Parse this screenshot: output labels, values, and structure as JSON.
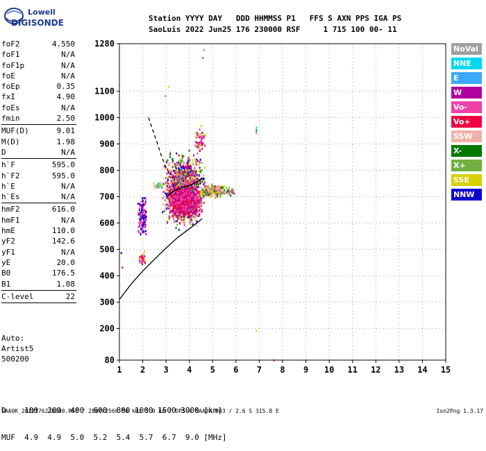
{
  "logo": {
    "line1": "Lowell",
    "line2": "DIGISONDE"
  },
  "header": {
    "line1": "Station YYYY DAY   DDD HHMMSS P1   FFS S AXN PPS IGA PS",
    "line2": "SaoLuis 2022 Jun25 176 230000 RSF     1 715 100 00- 11"
  },
  "params": [
    {
      "name": "foF2",
      "value": "4.550"
    },
    {
      "name": "foF1",
      "value": "N/A"
    },
    {
      "name": "foF1p",
      "value": "N/A"
    },
    {
      "name": "foE",
      "value": "N/A"
    },
    {
      "name": "foEp",
      "value": "0.35"
    },
    {
      "name": "fxI",
      "value": "4.90"
    },
    {
      "name": "foEs",
      "value": "N/A"
    },
    {
      "name": "fmin",
      "value": "2.50",
      "sep": true
    },
    {
      "name": "MUF(D)",
      "value": "9.01"
    },
    {
      "name": "M(D)",
      "value": "1.98"
    },
    {
      "name": "D",
      "value": "N/A",
      "sep": true
    },
    {
      "name": "h`F",
      "value": "595.0"
    },
    {
      "name": "h`F2",
      "value": "595.0"
    },
    {
      "name": "h`E",
      "value": "N/A"
    },
    {
      "name": "h`Es",
      "value": "N/A",
      "sep": true
    },
    {
      "name": "hmF2",
      "value": "616.0"
    },
    {
      "name": "hmF1",
      "value": "N/A"
    },
    {
      "name": "hmE",
      "value": "110.0"
    },
    {
      "name": "yF2",
      "value": "142.6"
    },
    {
      "name": "yF1",
      "value": "N/A"
    },
    {
      "name": "yE",
      "value": "20.0"
    },
    {
      "name": "B0",
      "value": "176.5"
    },
    {
      "name": "B1",
      "value": "1.08",
      "sep": true
    },
    {
      "name": "C-level",
      "value": "22",
      "sep": true
    }
  ],
  "auto": {
    "line1": "Auto:",
    "line2": "Artist5",
    "line3": "500200"
  },
  "legend": [
    {
      "label": "NoVal",
      "color": "#a0a0a0"
    },
    {
      "label": "NNE",
      "color": "#00d8f0"
    },
    {
      "label": "E",
      "color": "#3ca8f8"
    },
    {
      "label": "W",
      "color": "#b0009e"
    },
    {
      "label": "Vo-",
      "color": "#f040a8"
    },
    {
      "label": "Vo+",
      "color": "#f00040"
    },
    {
      "label": "SSW",
      "color": "#f0b0a8"
    },
    {
      "label": "X-",
      "color": "#007800"
    },
    {
      "label": "X+",
      "color": "#70b040"
    },
    {
      "label": "SSE",
      "color": "#d8d000"
    },
    {
      "label": "NNW",
      "color": "#1000d0"
    }
  ],
  "bottom": {
    "d_row": "D    100  200  400  600  800 1000 1500 3000 [km]",
    "muf_row": "MUF  4.9  4.9  5.0  5.2  5.4  5.7  6.7  9.0 [MHz]"
  },
  "footer": {
    "left": "SAA0K_2022176230000.RSF / 280fx256h 50 kHz 5.0 km / DPS-4 SAA0K 903 / 2.6 S 315.8 E",
    "right": "Ion2Png 1.3.17"
  },
  "chart_data": {
    "type": "scatter",
    "xlim": [
      1,
      15
    ],
    "ylim": [
      80,
      1280
    ],
    "x_ticks": [
      1,
      2,
      3,
      4,
      5,
      6,
      7,
      8,
      9,
      10,
      11,
      12,
      13,
      14,
      15
    ],
    "y_ticks": [
      80,
      200,
      300,
      400,
      500,
      600,
      700,
      800,
      900,
      1000,
      1100,
      1280
    ],
    "profile_curve": [
      [
        1.0,
        310
      ],
      [
        1.5,
        368
      ],
      [
        2.0,
        418
      ],
      [
        2.5,
        462
      ],
      [
        3.0,
        505
      ],
      [
        3.5,
        545
      ],
      [
        4.0,
        578
      ],
      [
        4.55,
        616
      ]
    ],
    "trace_curve": [
      [
        3.05,
        700
      ],
      [
        3.3,
        720
      ],
      [
        3.7,
        735
      ],
      [
        4.1,
        745
      ],
      [
        4.4,
        760
      ],
      [
        4.55,
        770
      ]
    ],
    "dashed_curve": [
      [
        2.25,
        1000
      ],
      [
        2.4,
        960
      ],
      [
        2.6,
        910
      ],
      [
        2.8,
        855
      ],
      [
        3.0,
        810
      ],
      [
        3.2,
        780
      ]
    ],
    "clusters": [
      {
        "xr": [
          2.8,
          4.7
        ],
        "yr": [
          560,
          900
        ],
        "n": 1300,
        "colors": [
          "#b0009e",
          "#f040a8",
          "#f00040",
          "#007800",
          "#70b040",
          "#1000d0",
          "#d8d000",
          "#f0b0a8"
        ]
      },
      {
        "xr": [
          3.0,
          4.5
        ],
        "yr": [
          600,
          780
        ],
        "n": 700,
        "colors": [
          "#f040a8",
          "#b0009e",
          "#f00040"
        ]
      },
      {
        "xr": [
          1.75,
          2.15
        ],
        "yr": [
          540,
          720
        ],
        "n": 140,
        "colors": [
          "#1000d0",
          "#b0009e",
          "#f040a8"
        ]
      },
      {
        "xr": [
          1.8,
          2.1
        ],
        "yr": [
          440,
          500
        ],
        "n": 45,
        "colors": [
          "#f040a8",
          "#b0009e",
          "#f00040",
          "#d8d000"
        ]
      },
      {
        "xr": [
          4.4,
          5.5
        ],
        "yr": [
          690,
          760
        ],
        "n": 200,
        "colors": [
          "#d8d000",
          "#70b040",
          "#f0b0a8",
          "#007800",
          "#f040a8"
        ]
      },
      {
        "xr": [
          2.4,
          3.0
        ],
        "yr": [
          730,
          760
        ],
        "n": 40,
        "colors": [
          "#00d8f0",
          "#3ca8f8",
          "#d8d000",
          "#f0b0a8"
        ]
      },
      {
        "xr": [
          4.2,
          4.7
        ],
        "yr": [
          850,
          980
        ],
        "n": 60,
        "colors": [
          "#f040a8",
          "#b0009e",
          "#d8d000",
          "#f00040"
        ]
      },
      {
        "xr": [
          5.4,
          6.0
        ],
        "yr": [
          700,
          745
        ],
        "n": 25,
        "colors": [
          "#007800",
          "#70b040",
          "#f040a8"
        ]
      }
    ],
    "points": [
      {
        "x": 6.85,
        "y": 955,
        "c": "#007800"
      },
      {
        "x": 6.85,
        "y": 965,
        "c": "#00d8f0"
      },
      {
        "x": 6.85,
        "y": 945,
        "c": "#70b040"
      },
      {
        "x": 6.85,
        "y": 195,
        "c": "#d8d000"
      },
      {
        "x": 7.6,
        "y": 83,
        "c": "#b0009e"
      },
      {
        "x": 4.55,
        "y": 1230,
        "c": "#f040a8"
      },
      {
        "x": 2.95,
        "y": 1085,
        "c": "#3ca8f8"
      },
      {
        "x": 3.1,
        "y": 1120,
        "c": "#d8d000"
      },
      {
        "x": 1.05,
        "y": 490,
        "c": "#1000d0"
      },
      {
        "x": 1.1,
        "y": 435,
        "c": "#b0009e"
      },
      {
        "x": 4.6,
        "y": 1260,
        "c": "#70b040"
      }
    ]
  }
}
